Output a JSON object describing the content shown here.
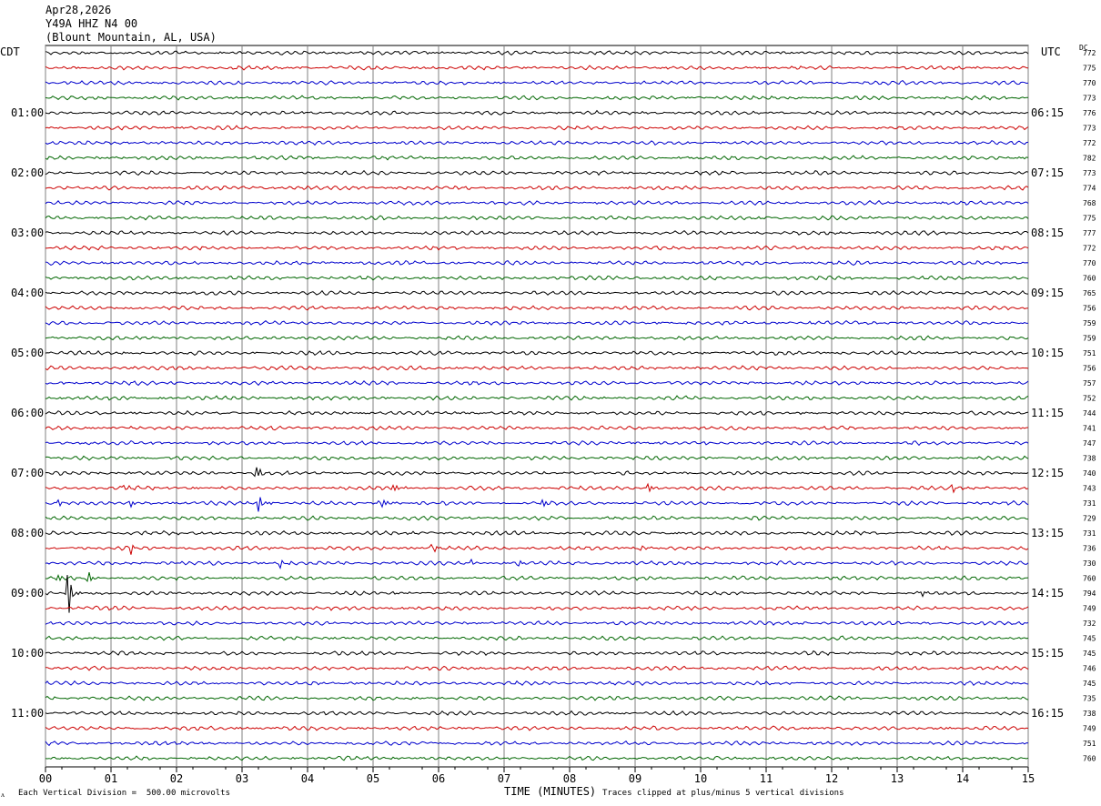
{
  "header": {
    "date": "Apr28,2026",
    "station": "Y49A HHZ N4 00",
    "location": "(Blount Mountain, AL, USA)"
  },
  "left_tz": "CDT",
  "right_tz": "UTC",
  "dc_label": "DC",
  "footer": {
    "scale_note": "Each Vertical Division =  500.00 microvolts",
    "xlabel": "TIME (MINUTES)",
    "clip_note": "Traces clipped at plus/minus 5 vertical divisions",
    "corner_mark": "ᴧ"
  },
  "colors": {
    "trace_cycle": [
      "#000000",
      "#cc0000",
      "#0000cc",
      "#006600"
    ],
    "grid": "#808080"
  },
  "chart_data": {
    "type": "line",
    "title": "",
    "xlabel": "TIME (MINUTES)",
    "xlim": [
      0,
      15
    ],
    "x_ticks": [
      "00",
      "01",
      "02",
      "03",
      "04",
      "05",
      "06",
      "07",
      "08",
      "09",
      "10",
      "11",
      "12",
      "13",
      "14",
      "15"
    ],
    "left_hour_labels": [
      "01:00",
      "02:00",
      "03:00",
      "04:00",
      "05:00",
      "06:00",
      "07:00",
      "08:00",
      "09:00",
      "10:00",
      "11:00"
    ],
    "right_hour_labels": [
      "06:15",
      "07:15",
      "08:15",
      "09:15",
      "10:15",
      "11:15",
      "12:15",
      "13:15",
      "14:15",
      "15:15",
      "16:15"
    ],
    "trace_count": 48,
    "traces_per_hour": 4,
    "dc_offsets": [
      772,
      775,
      770,
      773,
      776,
      773,
      772,
      782,
      773,
      774,
      768,
      775,
      777,
      772,
      770,
      760,
      765,
      756,
      759,
      759,
      751,
      756,
      757,
      752,
      744,
      741,
      747,
      738,
      740,
      743,
      731,
      729,
      731,
      736,
      730,
      760,
      794,
      749,
      732,
      745,
      745,
      746,
      745,
      735,
      738,
      749,
      751,
      760
    ],
    "events": [
      {
        "trace": 28,
        "minute": 3.2,
        "amplitude": 1.0
      },
      {
        "trace": 29,
        "minute": 1.2,
        "amplitude": 0.5
      },
      {
        "trace": 29,
        "minute": 5.3,
        "amplitude": 0.6
      },
      {
        "trace": 29,
        "minute": 9.2,
        "amplitude": 0.5
      },
      {
        "trace": 29,
        "minute": 13.8,
        "amplitude": 0.8
      },
      {
        "trace": 30,
        "minute": 0.2,
        "amplitude": 0.6
      },
      {
        "trace": 30,
        "minute": 1.3,
        "amplitude": 0.6
      },
      {
        "trace": 30,
        "minute": 3.25,
        "amplitude": 1.0
      },
      {
        "trace": 30,
        "minute": 5.1,
        "amplitude": 0.9
      },
      {
        "trace": 30,
        "minute": 7.6,
        "amplitude": 0.5
      },
      {
        "trace": 33,
        "minute": 1.3,
        "amplitude": 0.5
      },
      {
        "trace": 33,
        "minute": 5.9,
        "amplitude": 0.7
      },
      {
        "trace": 33,
        "minute": 9.1,
        "amplitude": 0.4
      },
      {
        "trace": 34,
        "minute": 3.6,
        "amplitude": 0.5
      },
      {
        "trace": 34,
        "minute": 6.5,
        "amplitude": 0.6
      },
      {
        "trace": 34,
        "minute": 7.2,
        "amplitude": 0.6
      },
      {
        "trace": 35,
        "minute": 0.2,
        "amplitude": 0.5
      },
      {
        "trace": 35,
        "minute": 0.65,
        "amplitude": 0.9
      },
      {
        "trace": 36,
        "minute": 0.35,
        "amplitude": 2.2
      },
      {
        "trace": 36,
        "minute": 13.35,
        "amplitude": 0.4
      }
    ]
  }
}
